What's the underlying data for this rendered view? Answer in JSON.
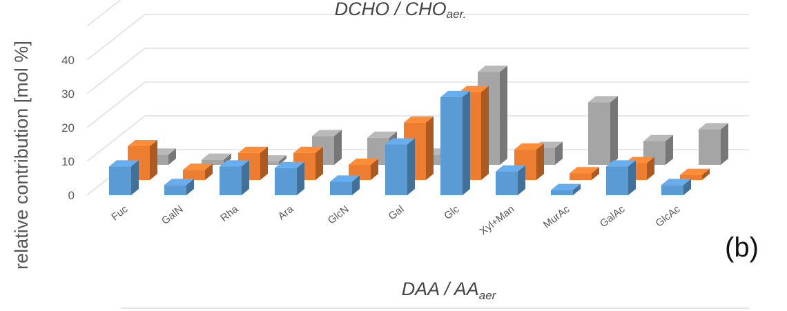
{
  "chart_data": {
    "type": "bar",
    "title_top": "DCHO / CHO",
    "title_top_sub": "aer.",
    "title_bottom": "DAA / AA",
    "title_bottom_sub": "aer",
    "panel_label": "(b)",
    "ylabel": "relative contribution [mol %]",
    "yticks": [
      "0",
      "10",
      "20",
      "30",
      "40"
    ],
    "ylim": [
      0,
      40
    ],
    "categories": [
      "Fuc",
      "GalN",
      "Rha",
      "Ara",
      "GlcN",
      "Gal",
      "Glc",
      "Xyl+Man",
      "MurAc",
      "GalAc",
      "GlcAc"
    ],
    "series": [
      {
        "values": [
          8.5,
          3,
          8.5,
          8,
          4,
          15,
          29,
          7,
          1.5,
          8.5,
          3
        ],
        "color": "#5B9BD5"
      },
      {
        "values": [
          10,
          3,
          8,
          8,
          4.5,
          17,
          26,
          9,
          2,
          5,
          1.5
        ],
        "color": "#ED7D31"
      },
      {
        "values": [
          3,
          1.5,
          1,
          8.5,
          8,
          3,
          27.5,
          5,
          18.5,
          7,
          10.5
        ],
        "color": "#A5A5A5"
      }
    ],
    "grid": true
  }
}
